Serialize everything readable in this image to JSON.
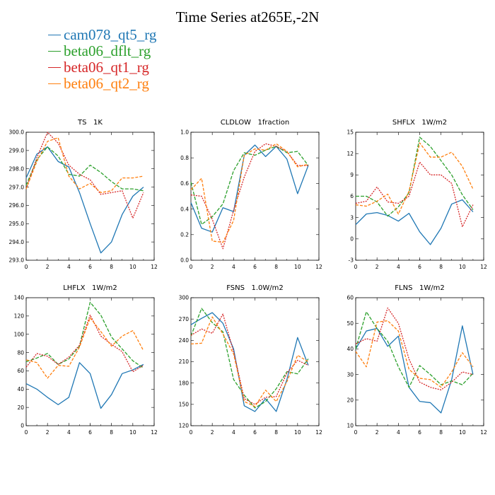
{
  "title": "Time Series at265E,-2N",
  "legend": [
    {
      "name": "cam078_qt5_rg",
      "color": "#1f77b4"
    },
    {
      "name": "beta06_dflt_rg",
      "color": "#2ca02c"
    },
    {
      "name": "beta06_qt1_rg",
      "color": "#d62728"
    },
    {
      "name": "beta06_qt2_rg",
      "color": "#ff7f0e"
    }
  ],
  "chart_data": [
    {
      "type": "line",
      "title": "TS   1K",
      "x": [
        0,
        1,
        2,
        3,
        4,
        5,
        6,
        7,
        8,
        9,
        10,
        11
      ],
      "xlim": [
        0,
        12
      ],
      "xticks": [
        "0",
        "2",
        "4",
        "6",
        "8",
        "10",
        "12"
      ],
      "ylim": [
        293,
        300
      ],
      "yticks": [
        "293.0",
        "294.0",
        "295.0",
        "296.0",
        "297.0",
        "298.0",
        "299.0",
        "300.0"
      ],
      "series": [
        {
          "name": "cam078_qt5_rg",
          "values": [
            297.5,
            298.8,
            299.2,
            298.4,
            298.1,
            296.7,
            295.0,
            293.4,
            294.0,
            295.5,
            296.5,
            297.0
          ]
        },
        {
          "name": "beta06_dflt_rg",
          "values": [
            297.1,
            298.5,
            299.2,
            298.7,
            297.7,
            297.6,
            298.2,
            297.8,
            297.3,
            296.9,
            296.9,
            296.8
          ]
        },
        {
          "name": "beta06_qt1_rg",
          "values": [
            296.9,
            298.6,
            300.0,
            299.4,
            298.2,
            297.7,
            297.4,
            296.6,
            296.7,
            296.8,
            295.3,
            296.7
          ]
        },
        {
          "name": "beta06_qt2_rg",
          "values": [
            296.9,
            298.4,
            299.5,
            299.7,
            297.6,
            296.9,
            297.2,
            296.7,
            296.8,
            297.5,
            297.5,
            297.6
          ]
        }
      ]
    },
    {
      "type": "line",
      "title": "CLDLOW   1fraction",
      "x": [
        0,
        1,
        2,
        3,
        4,
        5,
        6,
        7,
        8,
        9,
        10,
        11
      ],
      "xlim": [
        0,
        12
      ],
      "xticks": [
        "0",
        "2",
        "4",
        "6",
        "8",
        "10",
        "12"
      ],
      "ylim": [
        0,
        1
      ],
      "yticks": [
        "0.0",
        "0.2",
        "0.4",
        "0.6",
        "0.8",
        "1.0"
      ],
      "series": [
        {
          "name": "cam078_qt5_rg",
          "values": [
            0.45,
            0.25,
            0.22,
            0.41,
            0.38,
            0.82,
            0.9,
            0.81,
            0.89,
            0.79,
            0.52,
            0.74
          ]
        },
        {
          "name": "beta06_dflt_rg",
          "values": [
            0.61,
            0.28,
            0.34,
            0.44,
            0.7,
            0.84,
            0.82,
            0.86,
            0.89,
            0.84,
            0.85,
            0.74
          ]
        },
        {
          "name": "beta06_qt1_rg",
          "values": [
            0.51,
            0.5,
            0.32,
            0.09,
            0.39,
            0.65,
            0.85,
            0.91,
            0.89,
            0.85,
            0.74,
            0.74
          ]
        },
        {
          "name": "beta06_qt2_rg",
          "values": [
            0.55,
            0.64,
            0.15,
            0.14,
            0.31,
            0.82,
            0.87,
            0.86,
            0.91,
            0.85,
            0.73,
            0.75
          ]
        }
      ]
    },
    {
      "type": "line",
      "title": "SHFLX   1W/m2",
      "x": [
        0,
        1,
        2,
        3,
        4,
        5,
        6,
        7,
        8,
        9,
        10,
        11
      ],
      "xlim": [
        0,
        12
      ],
      "xticks": [
        "0",
        "2",
        "4",
        "6",
        "8",
        "10",
        "12"
      ],
      "ylim": [
        -3,
        15
      ],
      "yticks": [
        "-3",
        "0",
        "3",
        "6",
        "9",
        "12",
        "15"
      ],
      "series": [
        {
          "name": "cam078_qt5_rg",
          "values": [
            2.0,
            3.5,
            3.7,
            3.3,
            2.5,
            3.6,
            1.0,
            -0.8,
            1.5,
            4.9,
            5.5,
            3.8
          ]
        },
        {
          "name": "beta06_dflt_rg",
          "values": [
            6.0,
            6.0,
            5.2,
            3.2,
            4.5,
            6.5,
            14.3,
            13.0,
            11.0,
            9.0,
            6.2,
            4.1
          ]
        },
        {
          "name": "beta06_qt1_rg",
          "values": [
            5.0,
            5.3,
            7.3,
            5.2,
            5.0,
            6.0,
            10.8,
            9.0,
            9.0,
            7.8,
            1.7,
            4.8
          ]
        },
        {
          "name": "beta06_qt2_rg",
          "values": [
            4.8,
            4.6,
            5.3,
            6.3,
            3.5,
            6.7,
            13.5,
            11.5,
            11.5,
            12.2,
            10.2,
            7.0
          ]
        }
      ]
    },
    {
      "type": "line",
      "title": "LHFLX   1W/m2",
      "x": [
        0,
        1,
        2,
        3,
        4,
        5,
        6,
        7,
        8,
        9,
        10,
        11
      ],
      "xlim": [
        0,
        12
      ],
      "xticks": [
        "0",
        "2",
        "4",
        "6",
        "8",
        "10",
        "12"
      ],
      "ylim": [
        0,
        140
      ],
      "yticks": [
        "0",
        "20",
        "40",
        "60",
        "80",
        "100",
        "120",
        "140"
      ],
      "series": [
        {
          "name": "cam078_qt5_rg",
          "values": [
            46,
            40,
            31,
            23,
            31,
            69,
            57,
            19,
            34,
            57,
            61,
            67
          ]
        },
        {
          "name": "beta06_dflt_rg",
          "values": [
            70,
            74,
            79,
            67,
            73,
            87,
            135,
            121,
            97,
            84,
            71,
            63
          ]
        },
        {
          "name": "beta06_qt1_rg",
          "values": [
            64,
            79,
            76,
            67,
            75,
            88,
            121,
            98,
            89,
            81,
            59,
            66
          ]
        },
        {
          "name": "beta06_qt2_rg",
          "values": [
            72,
            69,
            52,
            66,
            65,
            86,
            118,
            103,
            87,
            98,
            104,
            82
          ]
        }
      ]
    },
    {
      "type": "line",
      "title": "FSNS   1.0W/m2",
      "x": [
        0,
        1,
        2,
        3,
        4,
        5,
        6,
        7,
        8,
        9,
        10,
        11
      ],
      "xlim": [
        0,
        12
      ],
      "xticks": [
        "0",
        "2",
        "4",
        "6",
        "8",
        "10",
        "12"
      ],
      "ylim": [
        120,
        300
      ],
      "yticks": [
        "120",
        "150",
        "180",
        "210",
        "240",
        "270",
        "300"
      ],
      "series": [
        {
          "name": "cam078_qt5_rg",
          "values": [
            262,
            271,
            279,
            264,
            228,
            148,
            140,
            158,
            140,
            185,
            244,
            205
          ]
        },
        {
          "name": "beta06_dflt_rg",
          "values": [
            246,
            285,
            265,
            252,
            185,
            163,
            145,
            154,
            172,
            196,
            193,
            214
          ]
        },
        {
          "name": "beta06_qt1_rg",
          "values": [
            247,
            256,
            250,
            277,
            224,
            158,
            150,
            160,
            161,
            194,
            212,
            205
          ]
        },
        {
          "name": "beta06_qt2_rg",
          "values": [
            235,
            236,
            273,
            249,
            221,
            154,
            147,
            170,
            154,
            182,
            219,
            210
          ]
        }
      ]
    },
    {
      "type": "line",
      "title": "FLNS   1W/m2",
      "x": [
        0,
        1,
        2,
        3,
        4,
        5,
        6,
        7,
        8,
        9,
        10,
        11
      ],
      "xlim": [
        0,
        12
      ],
      "xticks": [
        "0",
        "2",
        "4",
        "6",
        "8",
        "10",
        "12"
      ],
      "ylim": [
        10,
        60
      ],
      "yticks": [
        "10",
        "20",
        "30",
        "40",
        "50",
        "60"
      ],
      "series": [
        {
          "name": "cam078_qt5_rg",
          "values": [
            40,
            47,
            48,
            41,
            45,
            25,
            19.5,
            19,
            15,
            28,
            49,
            30
          ]
        },
        {
          "name": "beta06_dflt_rg",
          "values": [
            40,
            54.5,
            48,
            43,
            33,
            25,
            33.5,
            30,
            26,
            27.5,
            26,
            30.5
          ]
        },
        {
          "name": "beta06_qt1_rg",
          "values": [
            42,
            44,
            43,
            56,
            50,
            36,
            27,
            25,
            24,
            27,
            31,
            30
          ]
        },
        {
          "name": "beta06_qt2_rg",
          "values": [
            39,
            33,
            50.5,
            51,
            47,
            32,
            28.5,
            28,
            25,
            31,
            38.5,
            33
          ]
        }
      ]
    }
  ]
}
